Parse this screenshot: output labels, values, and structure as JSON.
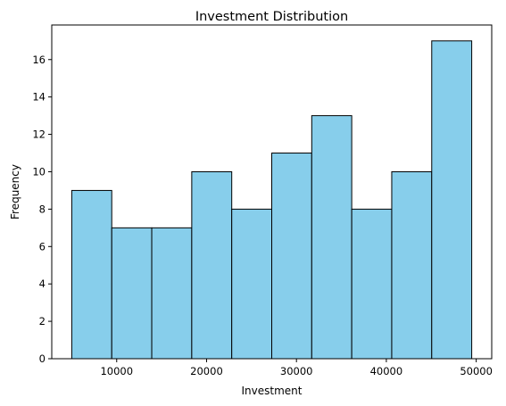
{
  "chart_data": {
    "type": "bar",
    "title": "Investment Distribution",
    "xlabel": "Investment",
    "ylabel": "Frequency",
    "bin_edges": [
      5000,
      9450,
      13900,
      18350,
      22800,
      27250,
      31700,
      36150,
      40600,
      45050,
      49500
    ],
    "values": [
      9,
      7,
      7,
      10,
      8,
      11,
      13,
      8,
      10,
      17
    ],
    "xlim": [
      2775,
      51725
    ],
    "ylim": [
      0,
      17.85
    ],
    "x_ticks": [
      10000,
      20000,
      30000,
      40000,
      50000
    ],
    "y_ticks": [
      0,
      2,
      4,
      6,
      8,
      10,
      12,
      14,
      16
    ],
    "grid": false,
    "legend": "none",
    "bar_color": "#87CEEB",
    "edge_color": "#000000"
  }
}
